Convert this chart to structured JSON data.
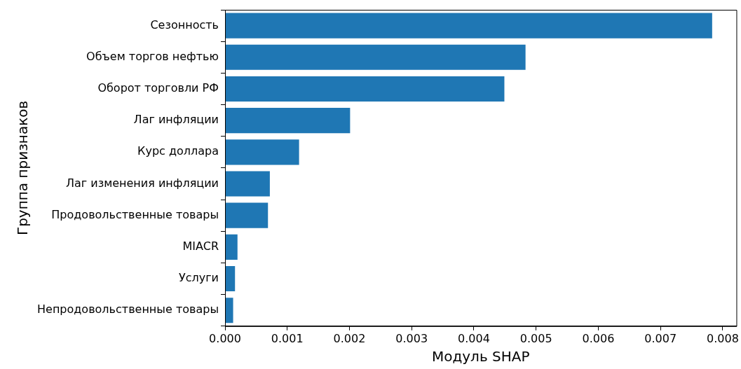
{
  "chart_data": {
    "type": "bar",
    "orientation": "horizontal",
    "xlabel": "Модуль SHAP",
    "ylabel": "Группа признаков",
    "categories": [
      "Сезонность",
      "Объем торгов нефтью",
      "Оборот торговли РФ",
      "Лаг инфляции",
      "Курс доллара",
      "Лаг изменения инфляции",
      "Продовольственные товары",
      "MIACR",
      "Услуги",
      "Непродовольственные товары"
    ],
    "values": [
      0.00783,
      0.00483,
      0.00449,
      0.00201,
      0.00119,
      0.00072,
      0.00069,
      0.0002,
      0.00016,
      0.00013
    ],
    "color": "#1f77b4",
    "xlim": [
      0,
      0.00822
    ],
    "xticks": [
      {
        "value": 0,
        "label": "0.000"
      },
      {
        "value": 0.001,
        "label": "0.001"
      },
      {
        "value": 0.002,
        "label": "0.002"
      },
      {
        "value": 0.003,
        "label": "0.003"
      },
      {
        "value": 0.004,
        "label": "0.004"
      },
      {
        "value": 0.005,
        "label": "0.005"
      },
      {
        "value": 0.006,
        "label": "0.006"
      },
      {
        "value": 0.007,
        "label": "0.007"
      },
      {
        "value": 0.008,
        "label": "0.008"
      }
    ],
    "grid": false,
    "legend": false
  }
}
